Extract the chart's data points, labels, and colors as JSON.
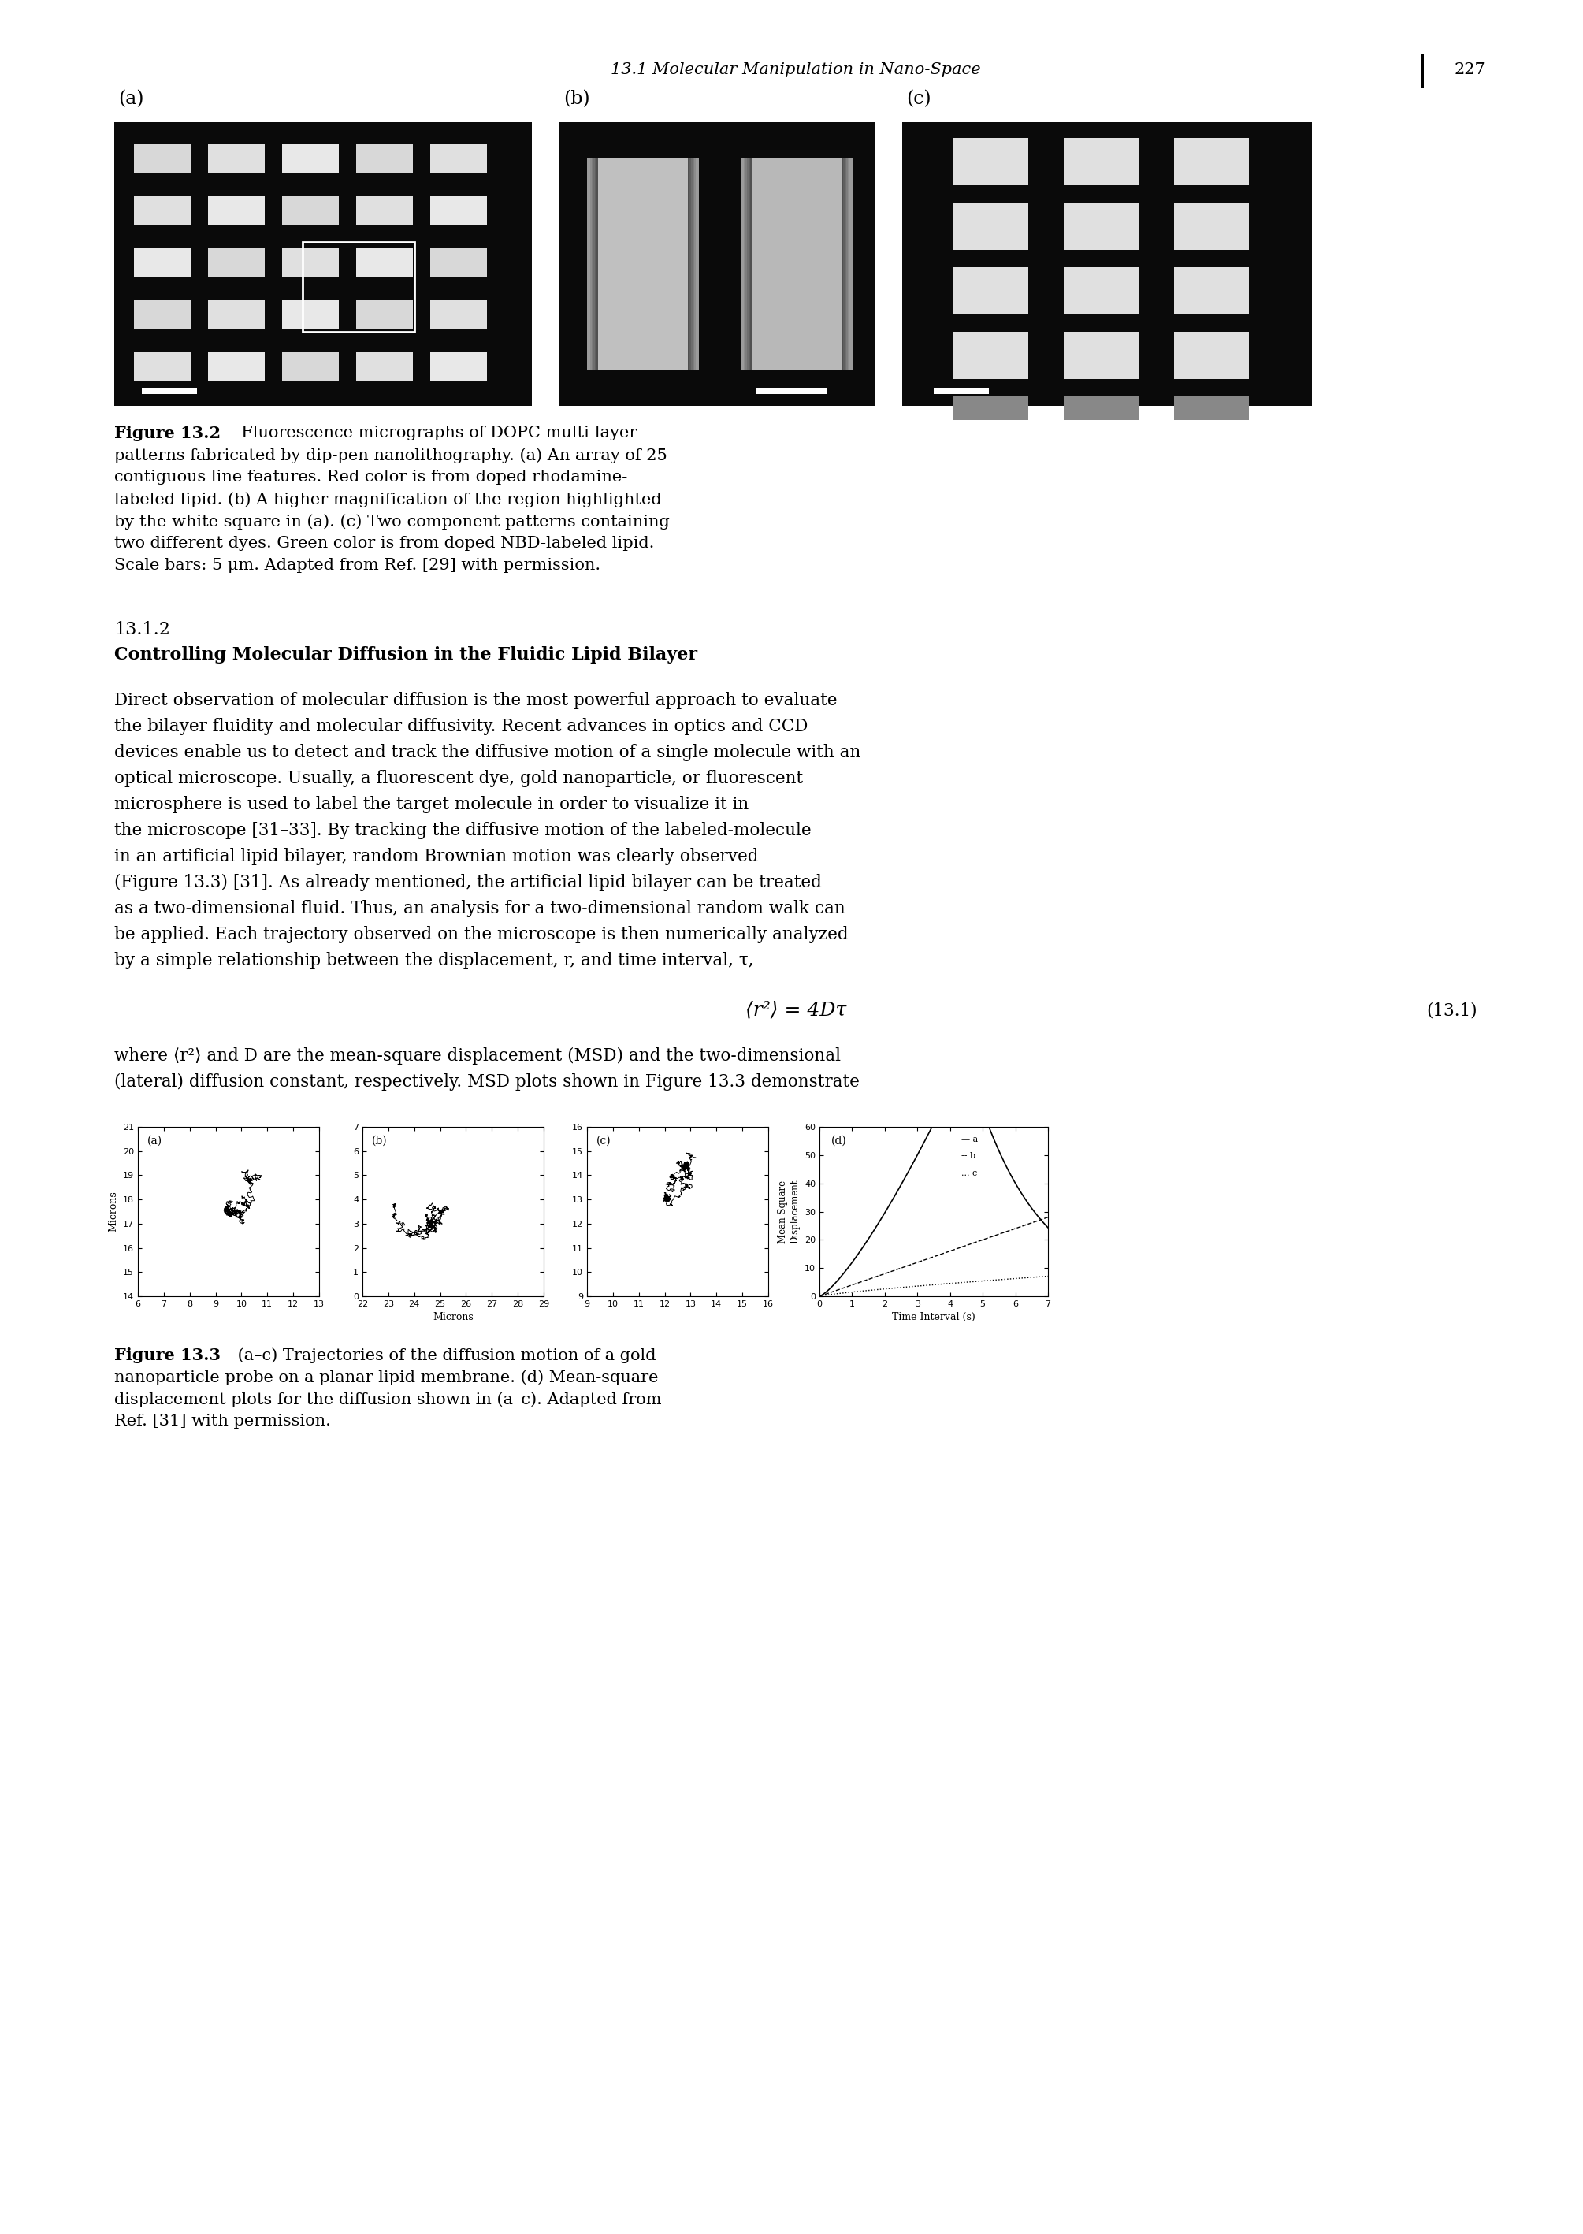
{
  "page_header": "13.1 Molecular Manipulation in Nano-Space",
  "page_number": "227",
  "fig_label_a": "(a)",
  "fig_label_b": "(b)",
  "fig_label_c": "(c)",
  "figure_caption_bold": "Figure 13.2",
  "figure_caption_rest_line1": "  Fluorescence micrographs of DOPC multi-layer",
  "figure_caption_lines": [
    "patterns fabricated by dip-pen nanolithography. (a) An array of 25",
    "contiguous line features. Red color is from doped rhodamine-",
    "labeled lipid. (b) A higher magnification of the region highlighted",
    "by the white square in (a). (c) Two-component patterns containing",
    "two different dyes. Green color is from doped NBD-labeled lipid.",
    "Scale bars: 5 μm. Adapted from Ref. [29] with permission."
  ],
  "section_number": "13.1.2",
  "section_title": "Controlling Molecular Diffusion in the Fluidic Lipid Bilayer",
  "paragraph_lines": [
    "Direct observation of molecular diffusion is the most powerful approach to evaluate",
    "the bilayer fluidity and molecular diffusivity. Recent advances in optics and CCD",
    "devices enable us to detect and track the diffusive motion of a single molecule with an",
    "optical microscope. Usually, a fluorescent dye, gold nanoparticle, or fluorescent",
    "microsphere is used to label the target molecule in order to visualize it in",
    "the microscope [31–33]. By tracking the diffusive motion of the labeled-molecule",
    "in an artificial lipid bilayer, random Brownian motion was clearly observed",
    "(Figure 13.3) [31]. As already mentioned, the artificial lipid bilayer can be treated",
    "as a two-dimensional fluid. Thus, an analysis for a two-dimensional random walk can",
    "be applied. Each trajectory observed on the microscope is then numerically analyzed",
    "by a simple relationship between the displacement, r, and time interval, τ,"
  ],
  "equation": "⟨r²⟩ = 4Dτ",
  "equation_number": "(13.1)",
  "after_eq_lines": [
    "where ⟨r²⟩ and D are the mean-square displacement (MSD) and the two-dimensional",
    "(lateral) diffusion constant, respectively. MSD plots shown in Figure 13.3 demonstrate"
  ],
  "fig3_caption_bold": "Figure 13.3",
  "fig3_caption_lines": [
    " (a–c) Trajectories of the diffusion motion of a gold",
    "nanoparticle probe on a planar lipid membrane. (d) Mean-square",
    "displacement plots for the diffusion shown in (a–c). Adapted from",
    "Ref. [31] with permission."
  ],
  "traj_a_yticks": [
    14,
    15,
    16,
    17,
    18,
    19,
    20,
    21
  ],
  "traj_a_xticks": [
    6,
    7,
    8,
    9,
    10,
    11,
    12,
    13
  ],
  "traj_b_yticks": [
    0,
    1,
    2,
    3,
    4,
    5,
    6,
    7
  ],
  "traj_b_xticks": [
    22,
    23,
    24,
    25,
    26,
    27,
    28,
    29
  ],
  "traj_c_yticks": [
    9,
    10,
    11,
    12,
    13,
    14,
    15,
    16
  ],
  "traj_c_xticks": [
    9,
    10,
    11,
    12,
    13,
    14,
    15,
    16
  ],
  "msd_yticks": [
    0,
    10,
    20,
    30,
    40,
    50,
    60
  ],
  "msd_xticks": [
    0,
    1,
    2,
    3,
    4,
    5,
    6,
    7
  ],
  "bg_color": "#ffffff"
}
